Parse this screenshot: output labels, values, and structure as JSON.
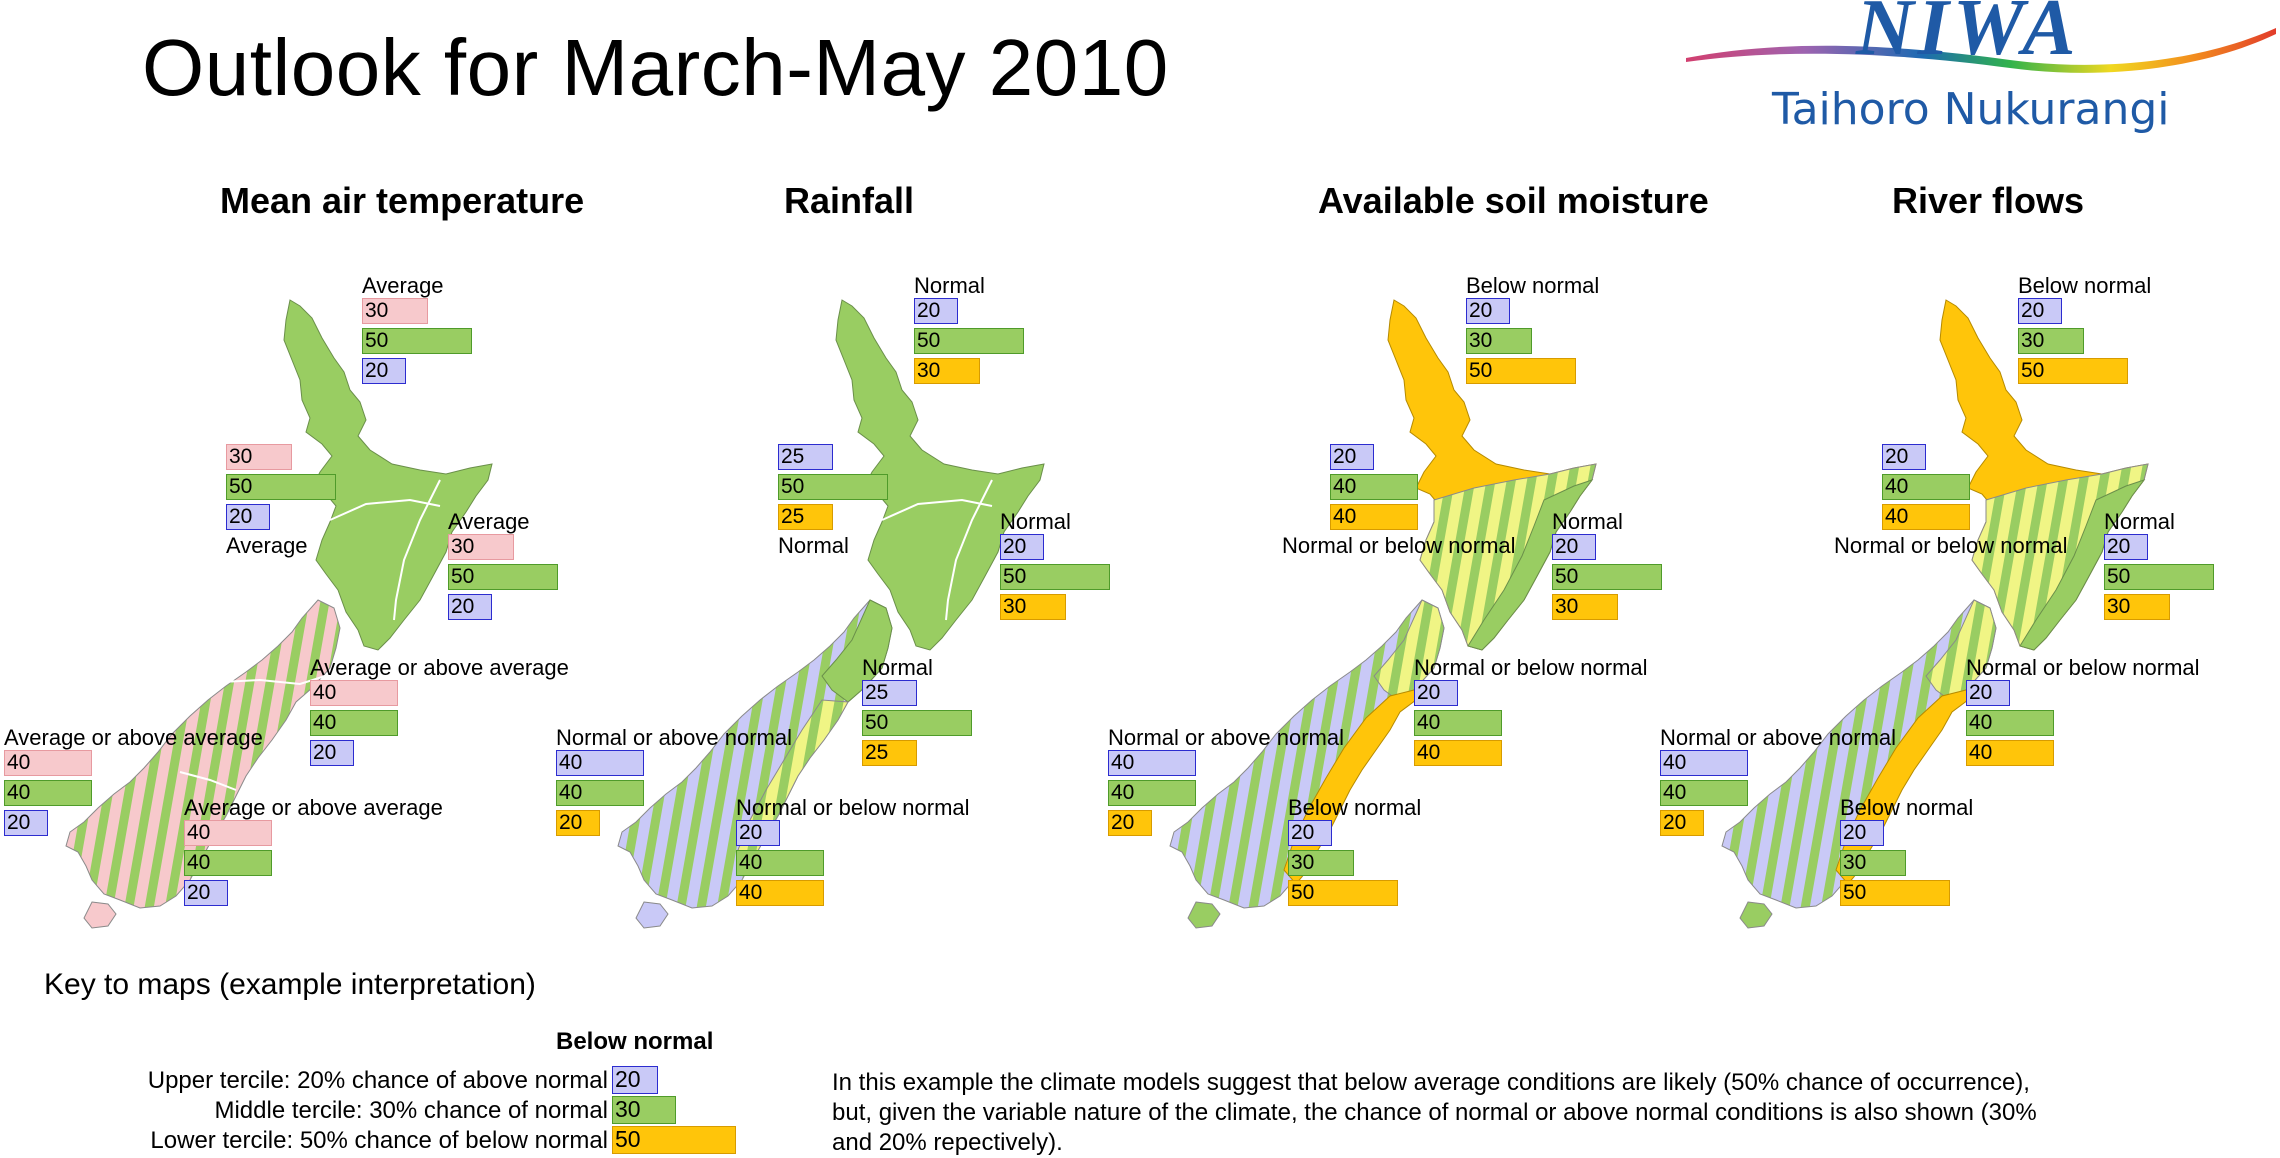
{
  "title": "Outlook for March-May 2010",
  "logo": {
    "name": "NIWA",
    "subtitle": "Taihoro Nukurangi",
    "colors": [
      "#d23f6f",
      "#9e64b0",
      "#1d6ab2",
      "#1da0d0",
      "#31b34b",
      "#f0d820",
      "#f28d1e",
      "#e23c2b"
    ]
  },
  "colors": {
    "above": "#f7c9cc",
    "above_border": "#e79aa0",
    "normal": "#99cd62",
    "normal_border": "#4f9b2a",
    "below_blue": "#c9c9f7",
    "below_blue_border": "#2c2ccf",
    "below_yellow": "#ffc50a",
    "below_yellow_border": "#d79b00",
    "stripe_light_yellow": "#f0f585"
  },
  "maps": [
    {
      "title": "Mean air temperature",
      "regions": [
        {
          "label": "Average",
          "values": [
            30,
            50,
            20
          ],
          "colors": [
            "a",
            "n",
            "b"
          ]
        },
        {
          "label": "Average",
          "values": [
            30,
            50,
            20
          ],
          "colors": [
            "a",
            "n",
            "b"
          ]
        },
        {
          "label": "Average",
          "values": [
            30,
            50,
            20
          ],
          "colors": [
            "a",
            "n",
            "b"
          ]
        },
        {
          "label": "Average or above average",
          "values": [
            40,
            40,
            20
          ],
          "colors": [
            "a",
            "n",
            "b"
          ]
        },
        {
          "label": "Average or above average",
          "values": [
            40,
            40,
            20
          ],
          "colors": [
            "a",
            "n",
            "b"
          ]
        },
        {
          "label": "Average or above average",
          "values": [
            40,
            40,
            20
          ],
          "colors": [
            "a",
            "n",
            "b"
          ]
        }
      ]
    },
    {
      "title": "Rainfall",
      "regions": [
        {
          "label": "Normal",
          "values": [
            20,
            50,
            30
          ],
          "colors": [
            "b",
            "n",
            "y"
          ]
        },
        {
          "label": "Normal",
          "values": [
            25,
            50,
            25
          ],
          "colors": [
            "b",
            "n",
            "y"
          ]
        },
        {
          "label": "Normal",
          "values": [
            20,
            50,
            30
          ],
          "colors": [
            "b",
            "n",
            "y"
          ]
        },
        {
          "label": "Normal",
          "values": [
            25,
            50,
            25
          ],
          "colors": [
            "b",
            "n",
            "y"
          ]
        },
        {
          "label": "Normal or above normal",
          "values": [
            40,
            40,
            20
          ],
          "colors": [
            "b",
            "n",
            "y"
          ]
        },
        {
          "label": "Normal or below normal",
          "values": [
            20,
            40,
            40
          ],
          "colors": [
            "b",
            "n",
            "y"
          ]
        }
      ]
    },
    {
      "title": "Available soil moisture",
      "regions": [
        {
          "label": "Below normal",
          "values": [
            20,
            30,
            50
          ],
          "colors": [
            "b",
            "n",
            "y"
          ]
        },
        {
          "label": "Normal or below normal",
          "values": [
            20,
            40,
            40
          ],
          "colors": [
            "b",
            "n",
            "y"
          ]
        },
        {
          "label": "Normal",
          "values": [
            20,
            50,
            30
          ],
          "colors": [
            "b",
            "n",
            "y"
          ]
        },
        {
          "label": "Normal or below normal",
          "values": [
            20,
            40,
            40
          ],
          "colors": [
            "b",
            "n",
            "y"
          ]
        },
        {
          "label": "Normal or above normal",
          "values": [
            40,
            40,
            20
          ],
          "colors": [
            "b",
            "n",
            "y"
          ]
        },
        {
          "label": "Below normal",
          "values": [
            20,
            30,
            50
          ],
          "colors": [
            "b",
            "n",
            "y"
          ]
        }
      ]
    },
    {
      "title": "River flows",
      "regions": [
        {
          "label": "Below normal",
          "values": [
            20,
            30,
            50
          ],
          "colors": [
            "b",
            "n",
            "y"
          ]
        },
        {
          "label": "Normal or below normal",
          "values": [
            20,
            40,
            40
          ],
          "colors": [
            "b",
            "n",
            "y"
          ]
        },
        {
          "label": "Normal",
          "values": [
            20,
            50,
            30
          ],
          "colors": [
            "b",
            "n",
            "y"
          ]
        },
        {
          "label": "Normal or below normal",
          "values": [
            20,
            40,
            40
          ],
          "colors": [
            "b",
            "n",
            "y"
          ]
        },
        {
          "label": "Normal or above normal",
          "values": [
            40,
            40,
            20
          ],
          "colors": [
            "b",
            "n",
            "y"
          ]
        },
        {
          "label": "Below normal",
          "values": [
            20,
            30,
            50
          ],
          "colors": [
            "b",
            "n",
            "y"
          ]
        }
      ]
    }
  ],
  "key": {
    "heading": "Key to maps (example interpretation)",
    "title": "Below normal",
    "lines": [
      {
        "text": "Upper tercile: 20% chance of above normal",
        "value": 20,
        "color": "b"
      },
      {
        "text": "Middle tercile: 30% chance of normal",
        "value": 30,
        "color": "n"
      },
      {
        "text": "Lower tercile: 50% chance of below normal",
        "value": 50,
        "color": "y"
      }
    ],
    "explanation": "In this example the climate models suggest that below average conditions are likely (50% chance of occurrence), but, given the variable nature of the climate, the chance of normal or above normal conditions is also shown (30% and 20% repectively)."
  }
}
